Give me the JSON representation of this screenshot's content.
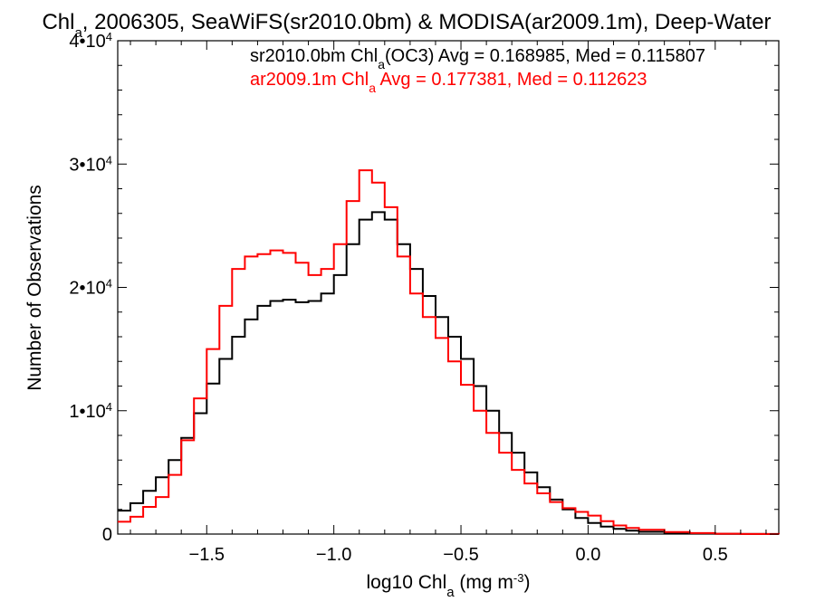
{
  "chart_data": {
    "type": "line",
    "step": true,
    "title_parts": [
      "Chl",
      "a",
      ", 2006305, SeaWiFS(sr2010.0bm) & MODISA(ar2009.1m), Deep-Water"
    ],
    "xlabel_parts": [
      "log10 Chl",
      "a",
      " (mg m",
      "-3",
      ")"
    ],
    "ylabel": "Number of Observations",
    "xlim": [
      -1.85,
      0.75
    ],
    "ylim": [
      0,
      40000
    ],
    "xticks": [
      {
        "value": -1.5,
        "label": "−1.5"
      },
      {
        "value": -1.0,
        "label": "−1.0"
      },
      {
        "value": -0.5,
        "label": "−0.5"
      },
      {
        "value": 0.0,
        "label": "0.0"
      },
      {
        "value": 0.5,
        "label": "0.5"
      }
    ],
    "yticks": [
      {
        "value": 0,
        "base": "0",
        "exp": ""
      },
      {
        "value": 10000,
        "base": "1•10",
        "exp": "4"
      },
      {
        "value": 20000,
        "base": "2•10",
        "exp": "4"
      },
      {
        "value": 30000,
        "base": "3•10",
        "exp": "4"
      },
      {
        "value": 40000,
        "base": "4•10",
        "exp": "4"
      }
    ],
    "legend": [
      {
        "parts": [
          "sr2010.0bm Chl",
          "a",
          "(OC3) Avg = 0.168985, Med = 0.115807"
        ],
        "color": "#000000"
      },
      {
        "parts": [
          "ar2009.1m Chl",
          "a",
          " Avg = 0.177381, Med = 0.112623"
        ],
        "color": "#ff0000"
      }
    ],
    "series": [
      {
        "color": "#000000",
        "x": [
          -1.85,
          -1.8,
          -1.75,
          -1.7,
          -1.65,
          -1.6,
          -1.55,
          -1.5,
          -1.45,
          -1.4,
          -1.35,
          -1.3,
          -1.25,
          -1.2,
          -1.15,
          -1.1,
          -1.05,
          -1.0,
          -0.95,
          -0.9,
          -0.85,
          -0.8,
          -0.75,
          -0.7,
          -0.65,
          -0.6,
          -0.55,
          -0.5,
          -0.45,
          -0.4,
          -0.35,
          -0.3,
          -0.25,
          -0.2,
          -0.15,
          -0.1,
          -0.05,
          0.0,
          0.05,
          0.1,
          0.15,
          0.2,
          0.3,
          0.4,
          0.5,
          0.6,
          0.7,
          0.75
        ],
        "y": [
          1900,
          2500,
          3500,
          4600,
          6000,
          7800,
          9800,
          12200,
          14200,
          16000,
          17400,
          18500,
          18900,
          19000,
          18800,
          18900,
          19500,
          21000,
          23500,
          25500,
          26100,
          25500,
          23500,
          21500,
          19300,
          17600,
          16000,
          14200,
          12000,
          10000,
          8200,
          6600,
          5000,
          3800,
          2800,
          2000,
          1300,
          900,
          600,
          420,
          280,
          180,
          90,
          40,
          15,
          5,
          2,
          0
        ]
      },
      {
        "color": "#ff0000",
        "x": [
          -1.85,
          -1.8,
          -1.75,
          -1.7,
          -1.65,
          -1.6,
          -1.55,
          -1.5,
          -1.45,
          -1.4,
          -1.35,
          -1.3,
          -1.25,
          -1.2,
          -1.15,
          -1.1,
          -1.05,
          -1.0,
          -0.95,
          -0.9,
          -0.85,
          -0.8,
          -0.75,
          -0.7,
          -0.65,
          -0.6,
          -0.55,
          -0.5,
          -0.45,
          -0.4,
          -0.35,
          -0.3,
          -0.25,
          -0.2,
          -0.15,
          -0.1,
          -0.05,
          0.0,
          0.05,
          0.1,
          0.15,
          0.2,
          0.3,
          0.4,
          0.5,
          0.6,
          0.7,
          0.75
        ],
        "y": [
          1000,
          1400,
          2200,
          3000,
          4800,
          7600,
          11000,
          15000,
          18500,
          21500,
          22500,
          22700,
          23000,
          22800,
          22000,
          21000,
          21500,
          23500,
          27000,
          29500,
          28500,
          26500,
          22500,
          19500,
          17600,
          15900,
          14000,
          12100,
          10000,
          8200,
          6600,
          5200,
          4100,
          3300,
          2600,
          2100,
          1800,
          1500,
          1050,
          700,
          500,
          350,
          170,
          80,
          30,
          10,
          4,
          0
        ]
      }
    ]
  }
}
